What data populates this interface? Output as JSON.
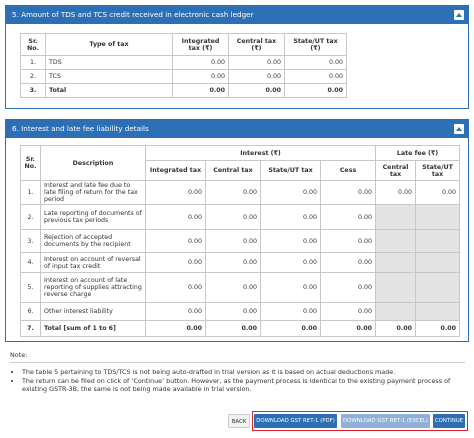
{
  "section5": {
    "title": "5. Amount of TDS and TCS credit received in electronic cash ledger",
    "table": {
      "headers": [
        "Sr. No.",
        "Type of tax",
        "Integrated tax (₹)",
        "Central tax (₹)",
        "State/UT tax (₹)"
      ],
      "rows": [
        [
          "1.",
          "TDS",
          "0.00",
          "0.00",
          "0.00"
        ],
        [
          "2.",
          "TCS",
          "0.00",
          "0.00",
          "0.00"
        ],
        [
          "3.",
          "Total",
          "0.00",
          "0.00",
          "0.00"
        ]
      ]
    }
  },
  "section6": {
    "title": "6. Interest and late fee liability details",
    "table": {
      "headers_top": [
        "Sr. No.",
        "Description",
        "Interest (₹)",
        "Late fee (₹)"
      ],
      "headers_sub": [
        "Integrated tax",
        "Central tax",
        "State/UT tax",
        "Cess",
        "Central tax",
        "State/UT tax"
      ],
      "rows": [
        [
          "1.",
          "Interest and late fee due to late filing of return for the tax period",
          "0.00",
          "0.00",
          "0.00",
          "0.00",
          "0.00",
          "0.00"
        ],
        [
          "2.",
          "Late reporting of documents of previous tax periods",
          "0.00",
          "0.00",
          "0.00",
          "0.00"
        ],
        [
          "3.",
          "Rejection of accepted documents by the recipient",
          "0.00",
          "0.00",
          "0.00",
          "0.00"
        ],
        [
          "4.",
          "Interest on account of reversal of input tax credit",
          "0.00",
          "0.00",
          "0.00",
          "0.00"
        ],
        [
          "5.",
          "Interest on account of late reporting of supplies attracting reverse charge",
          "0.00",
          "0.00",
          "0.00",
          "0.00"
        ],
        [
          "6.",
          "Other interest liability",
          "0.00",
          "0.00",
          "0.00",
          "0.00"
        ],
        [
          "7.",
          "Total [sum of 1 to 6]",
          "0.00",
          "0.00",
          "0.00",
          "0.00",
          "0.00",
          "0.00"
        ]
      ]
    }
  },
  "note": {
    "label": "Note:",
    "items": [
      "The table 5 pertaining to TDS/TCS is not being auto-drafted in trial version as it is based on actual deductions made.",
      "The return can be filed on click of ‘Continue’ button. However, as the payment process is identical to the existing payment process of existing GSTR-3B, the same is not being made available in trial version."
    ]
  },
  "buttons": [
    "BACK",
    "DOWNLOAD GST RET-1 (PDF)",
    "DOWNLOAD GST RET-1 (EXCEL)",
    "CONTINUE"
  ]
}
